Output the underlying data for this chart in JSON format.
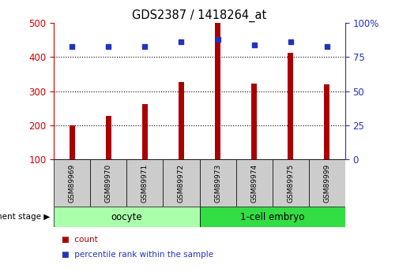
{
  "title": "GDS2387 / 1418264_at",
  "samples": [
    "GSM89969",
    "GSM89970",
    "GSM89971",
    "GSM89972",
    "GSM89973",
    "GSM89974",
    "GSM89975",
    "GSM89999"
  ],
  "counts": [
    200,
    228,
    262,
    328,
    500,
    322,
    413,
    320
  ],
  "percentile_ranks": [
    83,
    83,
    83,
    86,
    88,
    84,
    86,
    83
  ],
  "bar_color": "#AA0000",
  "dot_color": "#2233BB",
  "left_ylim": [
    100,
    500
  ],
  "left_yticks": [
    100,
    200,
    300,
    400,
    500
  ],
  "right_ylim": [
    0,
    100
  ],
  "right_yticks": [
    0,
    25,
    50,
    75,
    100
  ],
  "right_yticklabels": [
    "0",
    "25",
    "50",
    "75",
    "100%"
  ],
  "groups": [
    {
      "label": "oocyte",
      "start": 0,
      "end": 3,
      "color": "#AAFFAA"
    },
    {
      "label": "1-cell embryo",
      "start": 4,
      "end": 7,
      "color": "#33DD44"
    }
  ],
  "group_stage_label": "development stage ▶",
  "legend": [
    {
      "label": "count",
      "color": "#AA0000"
    },
    {
      "label": "percentile rank within the sample",
      "color": "#2233BB"
    }
  ],
  "bg_plot": "#FFFFFF",
  "bg_sample_box": "#CCCCCC",
  "tick_color_left": "#CC0000",
  "tick_color_right": "#2233BB",
  "grid_yticks": [
    200,
    300,
    400
  ]
}
